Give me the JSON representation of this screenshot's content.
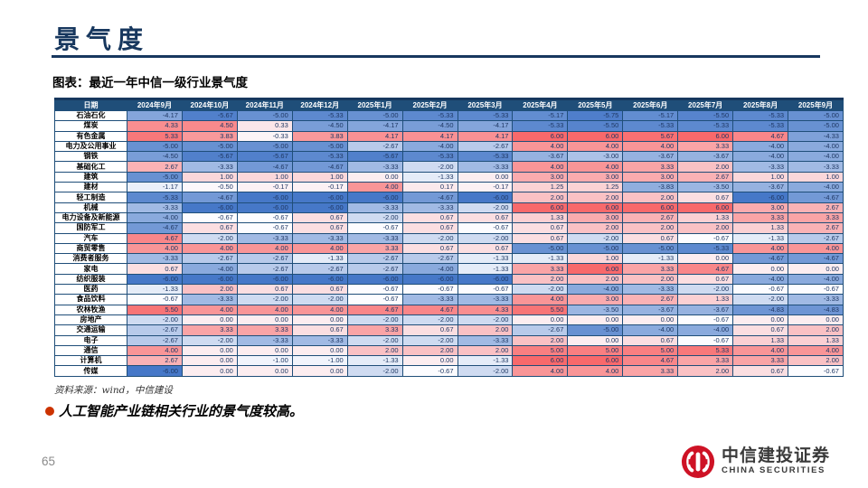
{
  "page": {
    "title": "景气度",
    "figure_caption": "图表：最近一年中信一级行业景气度",
    "source": "资料来源：wind，中信建设",
    "bullet": "人工智能产业链相关行业的景气度较高。",
    "page_number": "65"
  },
  "logo": {
    "cn": "中信建投证券",
    "en": "CHINA SECURITIES",
    "emblem": "citic-red-circle-icon"
  },
  "colors": {
    "accent": "#17375E",
    "table_header_bg": "#1F4E79",
    "cell_border": "#1F4E79",
    "value_text": "#1F3864",
    "scale_min_color": "#4678C8",
    "scale_mid_color": "#FCFCFF",
    "scale_max_color": "#F8696B",
    "bullet_dot": "#CC3300",
    "logo_red": "#CE1225"
  },
  "chart_data": {
    "type": "heatmap",
    "title": "最近一年中信一级行业景气度",
    "date_header": "日期",
    "legend_position": "none",
    "grid": true,
    "color_scale": {
      "min": -6,
      "mid": -0.67,
      "max": 6
    },
    "columns": [
      "2024年9月",
      "2024年10月",
      "2024年11月",
      "2024年12月",
      "2025年1月",
      "2025年2月",
      "2025年3月",
      "2025年4月",
      "2025年5月",
      "2025年6月",
      "2025年7月",
      "2025年8月",
      "2025年9月"
    ],
    "rows": [
      {
        "name": "石油石化",
        "values": [
          -4.17,
          -5.67,
          -5.0,
          -5.33,
          -5.0,
          -5.33,
          -5.33,
          -5.17,
          -5.75,
          -5.17,
          -5.5,
          -5.33,
          -5.0
        ]
      },
      {
        "name": "煤炭",
        "values": [
          4.33,
          4.5,
          0.33,
          -4.5,
          -4.17,
          -4.5,
          -4.17,
          -5.33,
          -5.5,
          -5.33,
          -5.33,
          -5.33,
          -5.0
        ]
      },
      {
        "name": "有色金属",
        "values": [
          5.33,
          3.83,
          -0.33,
          3.83,
          4.17,
          4.17,
          4.17,
          6.0,
          6.0,
          5.67,
          6.0,
          4.67,
          -4.33
        ]
      },
      {
        "name": "电力及公用事业",
        "values": [
          -5.0,
          -5.0,
          -5.0,
          -5.0,
          -2.67,
          -4.0,
          -2.67,
          4.0,
          4.0,
          4.0,
          3.33,
          -4.0,
          -4.0
        ]
      },
      {
        "name": "钢铁",
        "values": [
          -4.5,
          -5.67,
          -5.67,
          -5.33,
          -5.67,
          -5.33,
          -5.33,
          -3.67,
          -3.0,
          -3.67,
          -3.67,
          -4.0,
          -4.0
        ]
      },
      {
        "name": "基础化工",
        "values": [
          2.67,
          -3.33,
          -4.67,
          -4.67,
          -3.33,
          -2.0,
          -3.33,
          4.0,
          4.0,
          3.33,
          2.0,
          -3.33,
          -3.33
        ]
      },
      {
        "name": "建筑",
        "values": [
          -5.0,
          1.0,
          1.0,
          1.0,
          0.0,
          -1.33,
          0.0,
          3.0,
          3.0,
          3.0,
          2.67,
          1.0,
          1.0
        ]
      },
      {
        "name": "建材",
        "values": [
          -1.17,
          -0.5,
          -0.17,
          -0.17,
          4.0,
          0.17,
          -0.17,
          1.25,
          1.25,
          -3.83,
          -3.5,
          -3.67,
          -4.0
        ]
      },
      {
        "name": "轻工制造",
        "values": [
          -5.33,
          -4.67,
          -6.0,
          -6.0,
          -6.0,
          -4.67,
          -6.0,
          2.0,
          2.0,
          2.0,
          0.67,
          -6.0,
          -4.67
        ]
      },
      {
        "name": "机械",
        "values": [
          -3.33,
          -6.0,
          -6.0,
          -6.0,
          -3.33,
          -3.33,
          -2.0,
          6.0,
          6.0,
          6.0,
          6.0,
          3.0,
          2.67
        ]
      },
      {
        "name": "电力设备及新能源",
        "values": [
          -4.0,
          -0.67,
          -0.67,
          0.67,
          -2.0,
          0.67,
          0.67,
          1.33,
          3.0,
          2.67,
          1.33,
          3.33,
          3.33
        ]
      },
      {
        "name": "国防军工",
        "values": [
          -4.67,
          0.67,
          -0.67,
          0.67,
          -0.67,
          0.67,
          -0.67,
          0.67,
          2.0,
          2.0,
          2.0,
          1.33,
          2.67
        ]
      },
      {
        "name": "汽车",
        "values": [
          4.67,
          -2.0,
          -3.33,
          -3.33,
          -3.33,
          -2.0,
          -2.0,
          0.67,
          -2.0,
          0.67,
          -0.67,
          -1.33,
          -2.67
        ]
      },
      {
        "name": "商贸零售",
        "values": [
          4.0,
          4.0,
          4.0,
          4.0,
          3.33,
          0.67,
          0.67,
          -5.0,
          -5.0,
          -5.0,
          -5.33,
          4.0,
          4.0
        ]
      },
      {
        "name": "消费者服务",
        "values": [
          -3.33,
          -2.67,
          -2.67,
          -1.33,
          -2.67,
          -2.67,
          -1.33,
          -1.33,
          1.0,
          -1.33,
          0.0,
          -4.67,
          -4.67
        ]
      },
      {
        "name": "家电",
        "values": [
          0.67,
          -4.0,
          -2.67,
          -2.67,
          -2.67,
          -4.0,
          -1.33,
          3.33,
          6.0,
          3.33,
          4.67,
          0.0,
          0.0
        ]
      },
      {
        "name": "纺织服装",
        "values": [
          -6.0,
          -6.0,
          -6.0,
          -6.0,
          -6.0,
          -6.0,
          -6.0,
          2.0,
          2.0,
          2.0,
          0.67,
          -4.0,
          -4.0
        ]
      },
      {
        "name": "医药",
        "values": [
          -1.33,
          2.0,
          0.67,
          0.67,
          -0.67,
          -0.67,
          -0.67,
          -2.0,
          -4.0,
          -3.33,
          -2.0,
          -0.67,
          -0.67
        ]
      },
      {
        "name": "食品饮料",
        "values": [
          -0.67,
          -3.33,
          -2.0,
          -2.0,
          -0.67,
          -3.33,
          -3.33,
          4.0,
          3.0,
          2.67,
          1.33,
          -2.0,
          -3.33
        ]
      },
      {
        "name": "农林牧渔",
        "values": [
          5.5,
          4.0,
          4.0,
          4.0,
          4.67,
          4.67,
          4.33,
          5.5,
          -3.5,
          -3.67,
          -3.67,
          -4.83,
          -4.83
        ]
      },
      {
        "name": "房地产",
        "values": [
          -2.0,
          0.0,
          0.0,
          0.0,
          -2.0,
          -2.0,
          -2.0,
          0.0,
          0.0,
          0.0,
          -0.67,
          0.0,
          0.0
        ]
      },
      {
        "name": "交通运输",
        "values": [
          -2.67,
          3.33,
          3.33,
          0.67,
          3.33,
          0.67,
          2.0,
          -2.67,
          -5.0,
          -4.0,
          -4.0,
          0.67,
          2.0
        ]
      },
      {
        "name": "电子",
        "values": [
          -2.67,
          -2.0,
          -3.33,
          -3.33,
          -2.0,
          -2.0,
          -3.33,
          2.0,
          0.0,
          0.67,
          -0.67,
          1.33,
          1.33
        ]
      },
      {
        "name": "通信",
        "values": [
          4.0,
          0.0,
          0.0,
          0.0,
          2.0,
          2.0,
          2.0,
          5.0,
          5.0,
          5.0,
          5.33,
          4.0,
          4.0
        ]
      },
      {
        "name": "计算机",
        "values": [
          2.67,
          0.0,
          -1.0,
          -1.0,
          -1.33,
          0.0,
          -1.33,
          6.0,
          6.0,
          4.67,
          3.33,
          3.33,
          2.0
        ]
      },
      {
        "name": "传媒",
        "values": [
          -6.0,
          0.0,
          0.0,
          0.0,
          -2.0,
          -0.67,
          -2.0,
          4.0,
          4.0,
          3.33,
          2.0,
          0.67,
          -0.67
        ]
      }
    ]
  }
}
